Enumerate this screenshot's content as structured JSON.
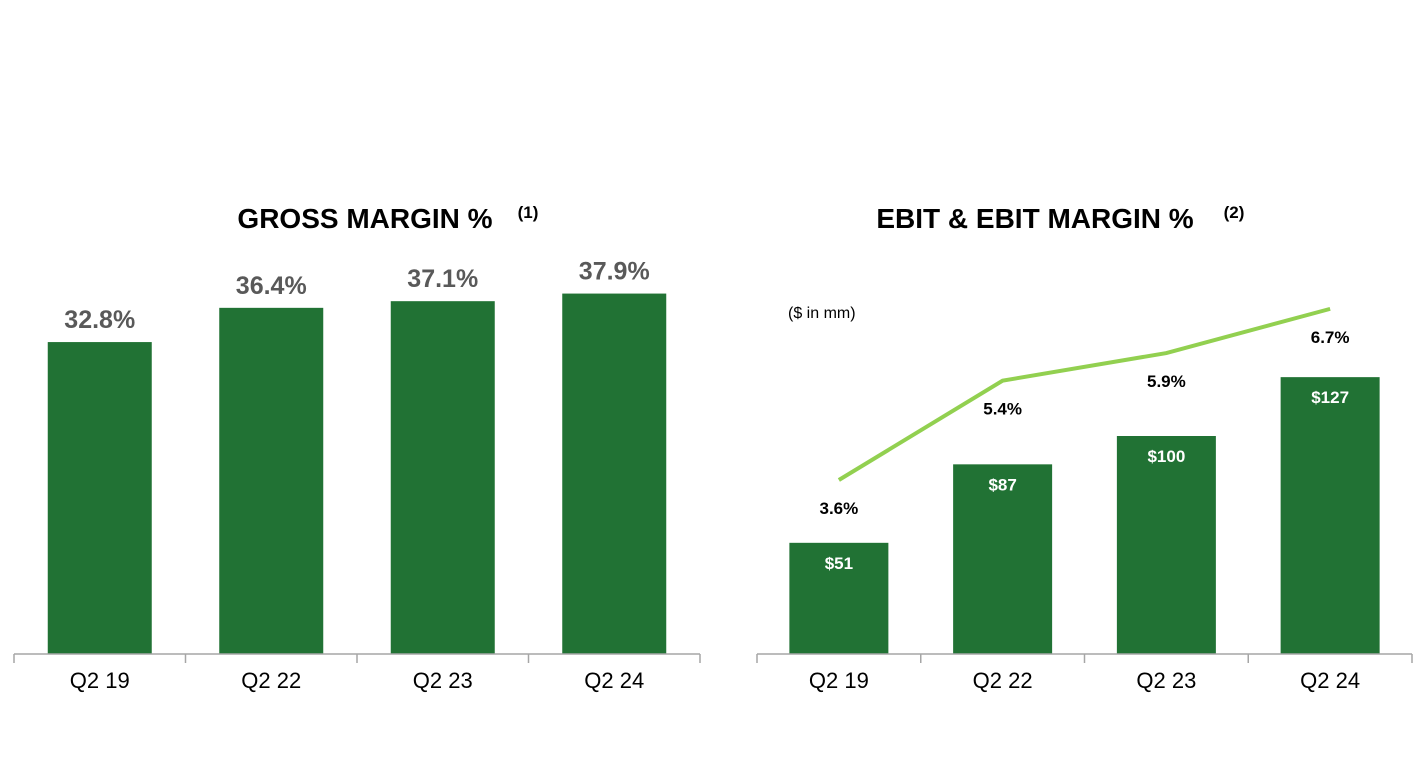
{
  "colors": {
    "bar": "#217234",
    "line": "#92d050",
    "axis": "#a6a6a6"
  },
  "chart_data": [
    {
      "type": "bar",
      "title": "GROSS MARGIN %",
      "title_footnote": "(1)",
      "categories": [
        "Q2 19",
        "Q2 22",
        "Q2 23",
        "Q2 24"
      ],
      "values": [
        32.8,
        36.4,
        37.1,
        37.9
      ],
      "value_labels": [
        "32.8%",
        "36.4%",
        "37.1%",
        "37.9%"
      ],
      "ylim": [
        0,
        40
      ]
    },
    {
      "type": "bar",
      "title": "EBIT & EBIT MARGIN %",
      "title_footnote": "(2)",
      "unit_note": "($ in mm)",
      "categories": [
        "Q2 19",
        "Q2 22",
        "Q2 23",
        "Q2 24"
      ],
      "series": [
        {
          "type": "bar",
          "values": [
            51,
            87,
            100,
            127
          ],
          "value_labels": [
            "$51",
            "$87",
            "$100",
            "$127"
          ]
        },
        {
          "type": "line",
          "values": [
            3.6,
            5.4,
            5.9,
            6.7
          ],
          "value_labels": [
            "3.6%",
            "5.4%",
            "5.9%",
            "6.7%"
          ]
        }
      ]
    }
  ]
}
